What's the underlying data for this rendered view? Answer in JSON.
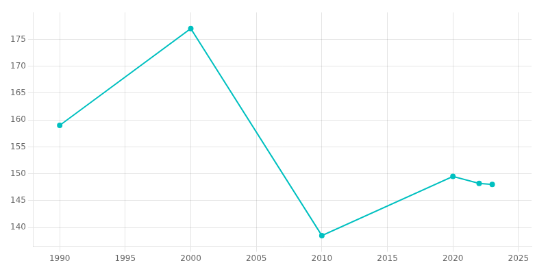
{
  "chart_data": {
    "type": "line",
    "x": [
      1990,
      2000,
      2010,
      2020,
      2022,
      2023
    ],
    "values": [
      159.0,
      177.0,
      138.5,
      149.5,
      148.2,
      148.0
    ],
    "color": "#00C0C0",
    "marker": "circle",
    "xlim": [
      1988,
      2026
    ],
    "ylim": [
      136.5,
      180
    ],
    "xticks": [
      1990,
      1995,
      2000,
      2005,
      2010,
      2015,
      2020,
      2025
    ],
    "yticks": [
      140,
      145,
      150,
      155,
      160,
      165,
      170,
      175
    ],
    "grid": true
  }
}
